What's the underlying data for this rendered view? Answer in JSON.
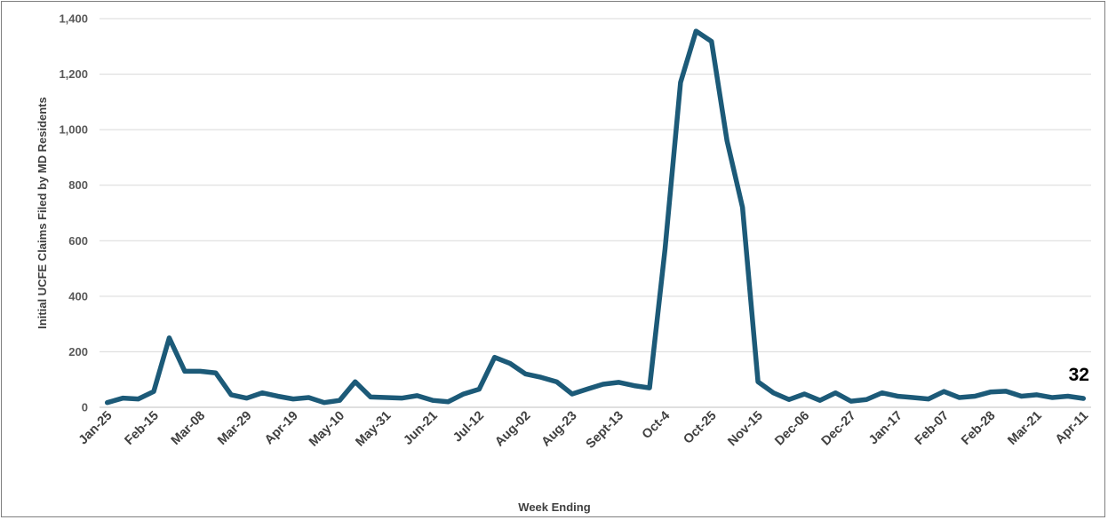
{
  "chart_data": {
    "type": "line",
    "title": "",
    "xlabel": "Week Ending",
    "ylabel": "Initial UCFE Claims Filed by MD Residents",
    "ylim": [
      0,
      1400
    ],
    "y_ticks": [
      0,
      200,
      400,
      600,
      800,
      1000,
      1200,
      1400
    ],
    "y_tick_labels": [
      "0",
      "200",
      "400",
      "600",
      "800",
      "1,000",
      "1,200",
      "1,400"
    ],
    "x_tick_labels": [
      "Jan-25",
      "Feb-15",
      "Mar-08",
      "Mar-29",
      "Apr-19",
      "May-10",
      "May-31",
      "Jun-21",
      "Jul-12",
      "Aug-02",
      "Aug-23",
      "Sept-13",
      "Oct-4",
      "Oct-25",
      "Nov-15",
      "Dec-06",
      "Dec-27",
      "Jan-17",
      "Feb-07",
      "Feb-28",
      "Mar-21",
      "Apr-11"
    ],
    "x_tick_every": 3,
    "grid": true,
    "series_color": "#1c5a78",
    "end_label": "32",
    "series": [
      {
        "values": [
          17,
          33,
          30,
          57,
          250,
          130,
          130,
          124,
          45,
          33,
          52,
          40,
          30,
          35,
          17,
          25,
          92,
          37,
          35,
          33,
          42,
          25,
          20,
          48,
          65,
          180,
          158,
          120,
          108,
          92,
          48,
          66,
          83,
          90,
          78,
          70,
          570,
          1170,
          1355,
          1318,
          960,
          720,
          92,
          52,
          28,
          48,
          25,
          52,
          22,
          28,
          52,
          40,
          35,
          30,
          57,
          35,
          40,
          55,
          58,
          40,
          45,
          35,
          40,
          32
        ]
      }
    ]
  }
}
